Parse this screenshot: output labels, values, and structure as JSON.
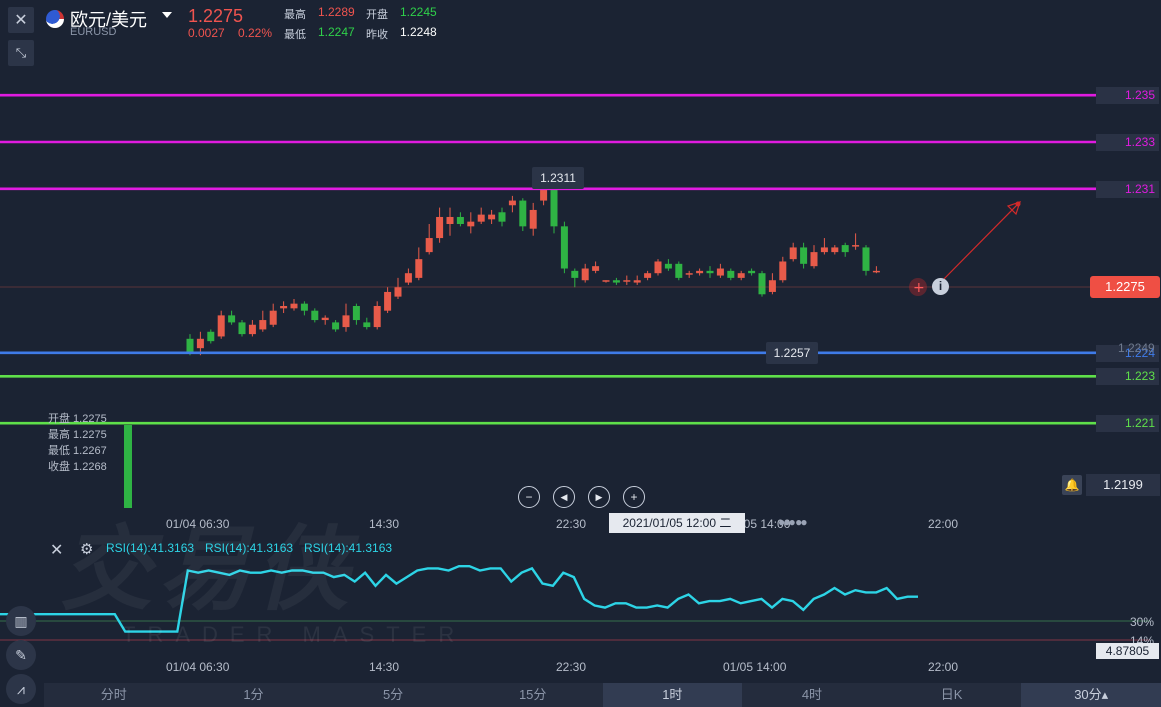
{
  "header": {
    "close_icon": "close-icon",
    "collapse_icon": "collapse-arrows-icon",
    "symbol_name": "欧元/美元",
    "symbol_code": "EURUSD",
    "price": "1.2275",
    "change": "0.0027",
    "change_pct": "0.22%",
    "high_label": "最高",
    "high": "1.2289",
    "open_label": "开盘",
    "open": "1.2245",
    "low_label": "最低",
    "low": "1.2247",
    "prev_close_label": "昨收",
    "prev_close": "1.2248"
  },
  "levels": [
    {
      "value": "1.235",
      "color": "#e01be0"
    },
    {
      "value": "1.233",
      "color": "#e01be0"
    },
    {
      "value": "1.231",
      "color": "#e01be0"
    },
    {
      "value": "1.224",
      "color": "#3f7be8"
    },
    {
      "value": "1.223",
      "color": "#5fe04a"
    },
    {
      "value": "1.221",
      "color": "#5fe04a"
    }
  ],
  "axis": {
    "current_price": "1.2275",
    "mid_price": "1.2249",
    "alert_price": "1.2199",
    "bell_icon": "bell-icon"
  },
  "tooltips": {
    "high_marker": "1.2311",
    "low_marker": "1.2257",
    "crosshair_time": "2021/01/05 12:00 二"
  },
  "ohlc": {
    "open": "开盘 1.2275",
    "high": "最高 1.2275",
    "low": "最低 1.2267",
    "close": "收盘 1.2268"
  },
  "controls": {
    "zoom_out": "−",
    "prev": "prev-icon",
    "next": "next-icon",
    "zoom_in": "+"
  },
  "time_axis": [
    "01/04 06:30",
    "14:30",
    "22:30",
    "01/05 14:00",
    "22:00"
  ],
  "rsi": {
    "labels": [
      "RSI(14):41.3163",
      "RSI(14):41.3163",
      "RSI(14):41.3163"
    ],
    "level_30": "30%",
    "level_14": "14%",
    "value": "4.87805"
  },
  "watermark": {
    "cn": "交易侠",
    "en": "TRADER MASTER"
  },
  "tabs": [
    {
      "label": "分时",
      "active": false
    },
    {
      "label": "1分",
      "active": false
    },
    {
      "label": "5分",
      "active": false
    },
    {
      "label": "15分",
      "active": false
    },
    {
      "label": "1时",
      "active": true
    },
    {
      "label": "4时",
      "active": false
    },
    {
      "label": "日K",
      "active": false
    },
    {
      "label": "30分▴",
      "active": true
    }
  ],
  "chart_data": {
    "type": "candlestick",
    "title": "",
    "ylim": [
      1.219,
      1.2365
    ],
    "candles": [
      [
        1.2246,
        1.224,
        1.2248,
        1.2239
      ],
      [
        1.2242,
        1.2246,
        1.2249,
        1.2239
      ],
      [
        1.2249,
        1.2245,
        1.225,
        1.2244
      ],
      [
        1.2247,
        1.2256,
        1.2258,
        1.2246
      ],
      [
        1.2256,
        1.2253,
        1.2258,
        1.2252
      ],
      [
        1.2253,
        1.2248,
        1.2254,
        1.2247
      ],
      [
        1.2248,
        1.2252,
        1.2254,
        1.2247
      ],
      [
        1.225,
        1.2254,
        1.2258,
        1.2249
      ],
      [
        1.2252,
        1.2258,
        1.2261,
        1.2251
      ],
      [
        1.2259,
        1.226,
        1.2262,
        1.2257
      ],
      [
        1.2259,
        1.2261,
        1.2263,
        1.2258
      ],
      [
        1.2261,
        1.2258,
        1.2262,
        1.2256
      ],
      [
        1.2258,
        1.2254,
        1.2259,
        1.2253
      ],
      [
        1.2254,
        1.2255,
        1.2256,
        1.2252
      ],
      [
        1.2253,
        1.225,
        1.2254,
        1.2249
      ],
      [
        1.2251,
        1.2256,
        1.2261,
        1.2249
      ],
      [
        1.226,
        1.2254,
        1.2261,
        1.2252
      ],
      [
        1.2253,
        1.2251,
        1.2255,
        1.225
      ],
      [
        1.2251,
        1.226,
        1.2262,
        1.225
      ],
      [
        1.2258,
        1.2266,
        1.2268,
        1.2257
      ],
      [
        1.2264,
        1.2268,
        1.2272,
        1.2263
      ],
      [
        1.227,
        1.2274,
        1.2276,
        1.2269
      ],
      [
        1.2272,
        1.228,
        1.2285,
        1.2271
      ],
      [
        1.2283,
        1.2289,
        1.2295,
        1.2282
      ],
      [
        1.2289,
        1.2298,
        1.2302,
        1.2287
      ],
      [
        1.2295,
        1.2298,
        1.2302,
        1.229
      ],
      [
        1.2298,
        1.2295,
        1.23,
        1.2294
      ],
      [
        1.2294,
        1.2296,
        1.23,
        1.2291
      ],
      [
        1.2296,
        1.2299,
        1.2302,
        1.2295
      ],
      [
        1.2297,
        1.2299,
        1.2301,
        1.2295
      ],
      [
        1.23,
        1.2296,
        1.2302,
        1.2294
      ],
      [
        1.2303,
        1.2305,
        1.2307,
        1.23
      ],
      [
        1.2305,
        1.2294,
        1.2306,
        1.2292
      ],
      [
        1.2293,
        1.2301,
        1.2304,
        1.229
      ],
      [
        1.2305,
        1.2311,
        1.2311,
        1.2303
      ],
      [
        1.2311,
        1.2294,
        1.2311,
        1.2291
      ],
      [
        1.2294,
        1.2276,
        1.2296,
        1.2274
      ],
      [
        1.2275,
        1.2272,
        1.2276,
        1.2268
      ],
      [
        1.2271,
        1.2276,
        1.2278,
        1.227
      ],
      [
        1.2275,
        1.2277,
        1.2279,
        1.2274
      ],
      [
        1.2271,
        1.2271,
        1.2271,
        1.227
      ],
      [
        1.2271,
        1.227,
        1.2272,
        1.2269
      ],
      [
        1.2271,
        1.2271,
        1.2273,
        1.2269
      ],
      [
        1.227,
        1.2271,
        1.2273,
        1.2269
      ],
      [
        1.2272,
        1.2274,
        1.2275,
        1.2271
      ],
      [
        1.2274,
        1.2279,
        1.228,
        1.2273
      ],
      [
        1.2278,
        1.2276,
        1.228,
        1.2275
      ],
      [
        1.2278,
        1.2272,
        1.2279,
        1.2271
      ],
      [
        1.2274,
        1.2274,
        1.2275,
        1.2272
      ],
      [
        1.2274,
        1.2275,
        1.2276,
        1.2273
      ],
      [
        1.2275,
        1.2274,
        1.2277,
        1.2272
      ],
      [
        1.2273,
        1.2276,
        1.2278,
        1.2272
      ],
      [
        1.2275,
        1.2272,
        1.2276,
        1.2271
      ],
      [
        1.2272,
        1.2274,
        1.2275,
        1.2271
      ],
      [
        1.2275,
        1.2274,
        1.2276,
        1.2273
      ],
      [
        1.2274,
        1.2265,
        1.2275,
        1.2264
      ],
      [
        1.2266,
        1.2271,
        1.2274,
        1.2265
      ],
      [
        1.2271,
        1.2279,
        1.2281,
        1.227
      ],
      [
        1.228,
        1.2285,
        1.2287,
        1.2279
      ],
      [
        1.2285,
        1.2278,
        1.2287,
        1.2276
      ],
      [
        1.2277,
        1.2283,
        1.2286,
        1.2276
      ],
      [
        1.2283,
        1.2285,
        1.2289,
        1.2282
      ],
      [
        1.2283,
        1.2285,
        1.2286,
        1.2282
      ],
      [
        1.2286,
        1.2283,
        1.2287,
        1.2281
      ],
      [
        1.2286,
        1.2286,
        1.2291,
        1.2284
      ],
      [
        1.2285,
        1.2275,
        1.2286,
        1.2273
      ],
      [
        1.2275,
        1.2275,
        1.2277,
        1.2274
      ]
    ],
    "up_color": "#e85b4a",
    "down_color": "#2fb344",
    "rsi_values": [
      41,
      41,
      41,
      41,
      41,
      41,
      41,
      41,
      41,
      41,
      41,
      41,
      33,
      33,
      33,
      33,
      33,
      33,
      61,
      60,
      61,
      60,
      59,
      61,
      60,
      60,
      61,
      60,
      61,
      61,
      60,
      60,
      58,
      59,
      56,
      60,
      54,
      59,
      55,
      58,
      61,
      62,
      62,
      61,
      63,
      63,
      61,
      62,
      62,
      56,
      60,
      62,
      55,
      54,
      60,
      58,
      48,
      45,
      44,
      46,
      46,
      44,
      44,
      45,
      44,
      48,
      50,
      46,
      47,
      47,
      48,
      46,
      47,
      48,
      44,
      48,
      47,
      43,
      48,
      50,
      53,
      50,
      52,
      51,
      51,
      53,
      48,
      49,
      49
    ],
    "rsi_ylim": [
      20,
      75
    ]
  }
}
